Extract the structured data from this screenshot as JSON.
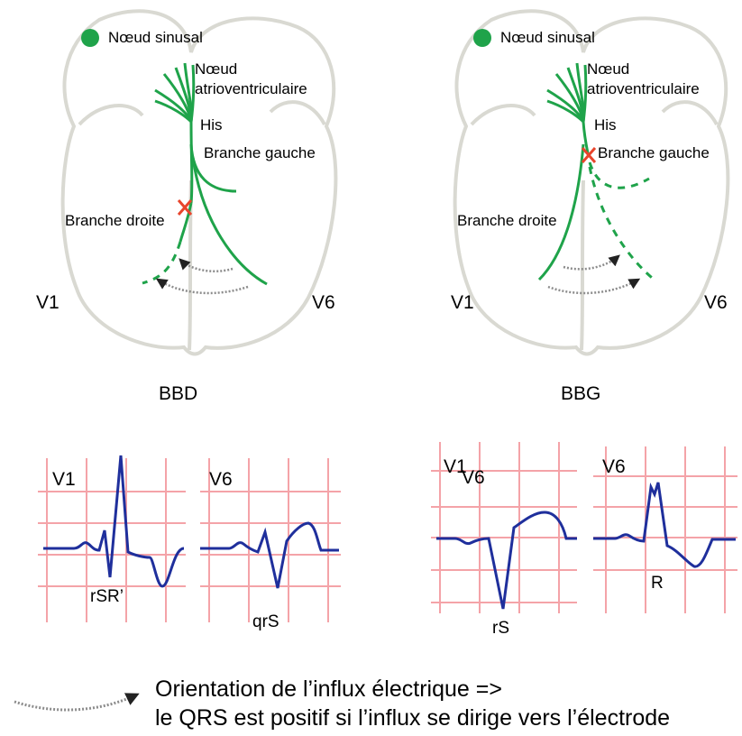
{
  "left_panel": {
    "sinus_node": "Nœud sinusal",
    "av_node_line1": "Nœud",
    "av_node_line2": "atrioventriculaire",
    "his": "His",
    "left_branch": "Branche gauche",
    "right_branch": "Branche droite",
    "lead_left": "V1",
    "lead_right": "V6",
    "block_label": "BBD"
  },
  "right_panel": {
    "sinus_node": "Nœud sinusal",
    "av_node_line1": "Nœud",
    "av_node_line2": "atrioventriculaire",
    "his": "His",
    "left_branch": "Branche gauche",
    "right_branch": "Branche droite",
    "lead_left": "V1",
    "lead_right": "V6",
    "block_label": "BBG"
  },
  "ecg": {
    "bbd_v1": {
      "lead": "V1",
      "pattern": "rSR’"
    },
    "bbd_v6": {
      "lead": "V6",
      "pattern": "qrS"
    },
    "bbg_v1": {
      "lead": "V1",
      "lead_overlap": "V6",
      "pattern": "rS"
    },
    "bbg_v6": {
      "lead": "V6",
      "pattern": "R"
    }
  },
  "legend": {
    "line1": "Orientation de l’influx électrique =>",
    "line2": "le QRS est positif si l’influx se dirige vers l’électrode"
  },
  "colors": {
    "conduction": "#1fa34a",
    "block_mark": "#e8452c",
    "heart_outline": "#d9d9d2",
    "ecg_grid": "#f4a3a8",
    "ecg_trace": "#1f2f9c",
    "influx_arrow": "#8c8c8c"
  }
}
